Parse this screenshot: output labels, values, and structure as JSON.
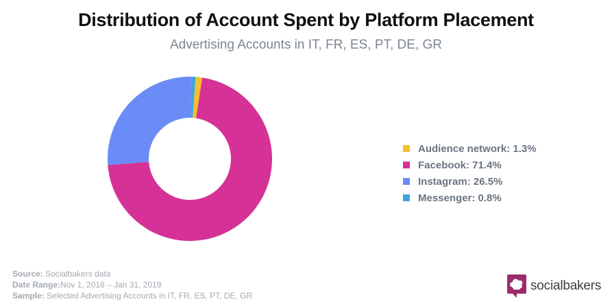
{
  "chart_data": {
    "type": "pie",
    "title": "Distribution of Account Spent by Platform Placement",
    "subtitle": "Advertising Accounts in IT, FR, ES, PT, DE, GR",
    "categories": [
      "Audience network",
      "Facebook",
      "Instagram",
      "Messenger"
    ],
    "values": [
      1.3,
      71.4,
      26.5,
      0.8
    ],
    "colors": [
      "#f2c031",
      "#d63197",
      "#6b8cf7",
      "#3ea4e0"
    ],
    "legend_labels": [
      "Audience network: 1.3%",
      "Facebook: 71.4%",
      "Instagram: 26.5%",
      "Messenger: 0.8%"
    ],
    "legend_position": "right",
    "donut": true
  },
  "footer": {
    "source_label": "Source:",
    "source_value": " Socialbakers data",
    "date_label": "Date Range:",
    "date_value": "Nov 1, 2018  – Jan 31, 2019",
    "sample_label": "Sample:",
    "sample_value": " Selected Advertising Accounts in IT, FR, ES, PT, DE, GR"
  },
  "brand": {
    "name": "socialbakers",
    "logo_color": "#9c2b6c",
    "icon": "chef-hat-icon"
  }
}
